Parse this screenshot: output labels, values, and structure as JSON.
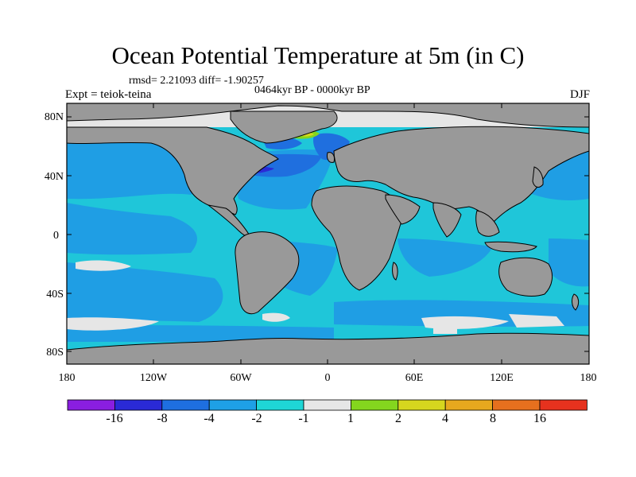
{
  "title": "Ocean Potential Temperature at 5m (in C)",
  "stats": "rmsd= 2.21093 diff= -1.90257",
  "period": "0464kyr BP - 0000kyr BP",
  "experiment": "Expt = teiok-teina",
  "season": "DJF",
  "lat_labels": [
    "80N",
    "40N",
    "0",
    "40S",
    "80S"
  ],
  "lon_labels": [
    "180",
    "120W",
    "60W",
    "0",
    "60E",
    "120E",
    "180"
  ],
  "colorbar": {
    "labels": [
      "-16",
      "-8",
      "-4",
      "-2",
      "-1",
      "1",
      "2",
      "4",
      "8",
      "16"
    ],
    "colors": [
      "#8a1ee0",
      "#2a2ad6",
      "#1e6fe0",
      "#1ea0e6",
      "#1ed6d6",
      "#e6e6e6",
      "#84d61e",
      "#d6d61e",
      "#e6a81e",
      "#e6701e",
      "#e6321e"
    ]
  },
  "map_colors": {
    "land": "#999999",
    "ocean_base": "#1fc6d9",
    "ocean_cooler": "#1f9ee4",
    "ocean_cold": "#1f6fdf",
    "ocean_coldest": "#2a2ad6",
    "near_zero": "#e6e6e6",
    "warm": "#84d61e"
  }
}
